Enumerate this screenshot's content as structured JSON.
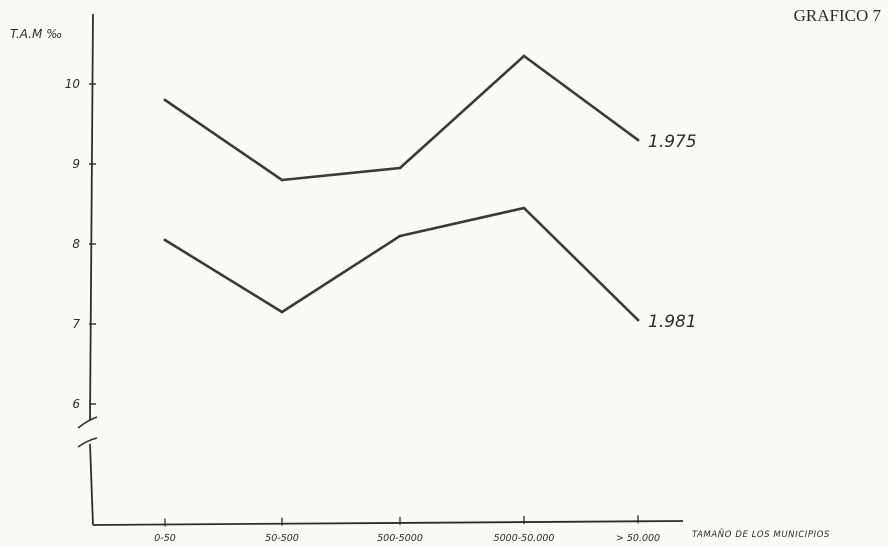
{
  "figure_label": "GRAFICO 7",
  "chart_data": {
    "type": "line",
    "ylabel": "T.A.M ‰",
    "xlabel": "TAMAÑO DE LOS MUNICIPIOS",
    "categories": [
      "0-50",
      "50-500",
      "500-5000",
      "5000-50.000",
      "> 50.000"
    ],
    "y_ticks": [
      6,
      7,
      8,
      9,
      10
    ],
    "ylim": [
      5.85,
      10.95
    ],
    "axis_break": true,
    "grid": false,
    "legend": "inline-end-labels",
    "series": [
      {
        "name": "1.975",
        "values": [
          9.8,
          8.8,
          8.95,
          10.35,
          9.3
        ],
        "color": "#3a3a3a"
      },
      {
        "name": "1.981",
        "values": [
          8.05,
          7.15,
          8.1,
          8.45,
          7.05
        ],
        "color": "#3a3a3a"
      }
    ]
  }
}
